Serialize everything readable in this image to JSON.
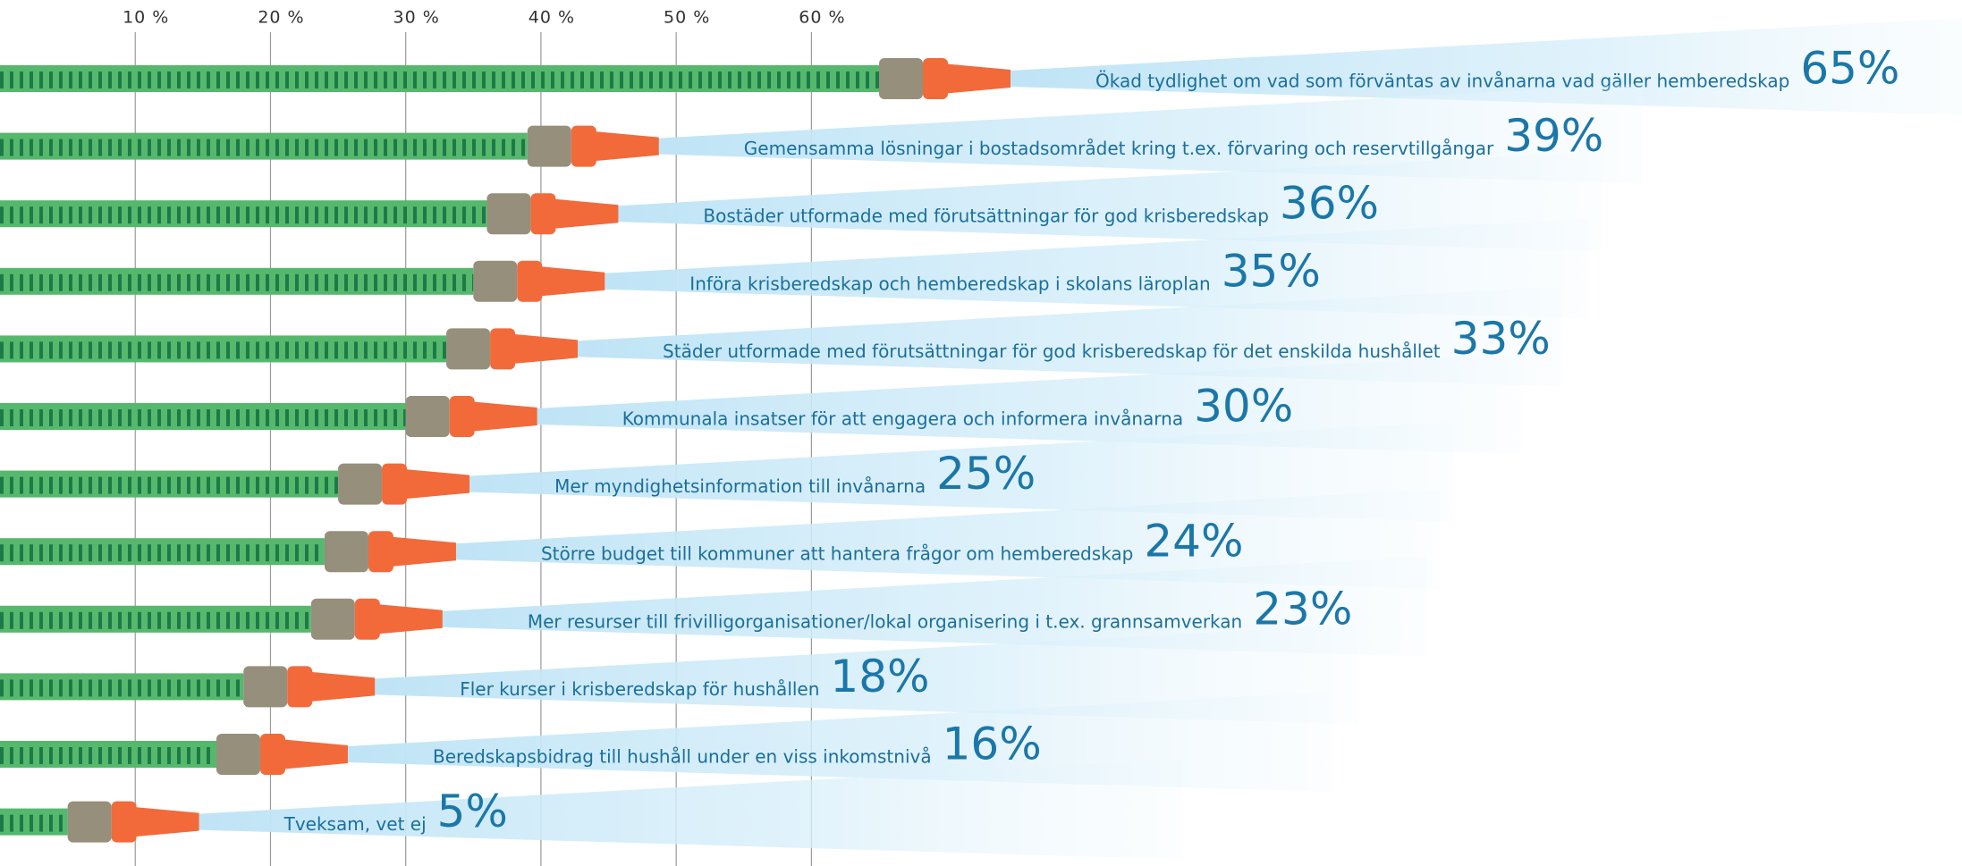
{
  "chart_data": {
    "type": "hosebar",
    "categories": [
      "Ökad tydlighet om vad som förväntas av invånarna vad gäller hemberedskap",
      "Gemensamma lösningar i bostadsområdet kring t.ex. förvaring och reservtillgångar",
      "Bostäder utformade med förutsättningar för god krisberedskap",
      "Införa krisberedskap och hemberedskap i skolans läroplan",
      "Städer utformade med förutsättningar för god krisberedskap för det enskilda hushållet",
      "Kommunala insatser för att engagera och informera invånarna",
      "Mer myndighetsinformation till invånarna",
      "Större budget till kommuner att hantera frågor om hemberedskap",
      "Mer resurser till frivilligorganisationer/lokal organisering i t.ex. grannsamverkan",
      "Fler kurser i krisberedskap för hushållen",
      "Beredskapsbidrag till hushåll under en viss inkomstnivå",
      "Tveksam, vet ej"
    ],
    "values": [
      65,
      39,
      36,
      35,
      33,
      30,
      25,
      24,
      23,
      18,
      16,
      5
    ],
    "value_labels": [
      "65%",
      "39%",
      "36%",
      "35%",
      "33%",
      "30%",
      "25%",
      "24%",
      "23%",
      "18%",
      "16%",
      "5%"
    ],
    "color": "#55b86c",
    "xlim": [
      0,
      65
    ],
    "xticks": [
      {
        "value": 10,
        "label": "10 %"
      },
      {
        "value": 20,
        "label": "20 %"
      },
      {
        "value": 30,
        "label": "30 %"
      },
      {
        "value": 40,
        "label": "40 %"
      },
      {
        "value": 50,
        "label": "50 %"
      },
      {
        "value": 60,
        "label": "60 %"
      }
    ],
    "grid": true
  }
}
